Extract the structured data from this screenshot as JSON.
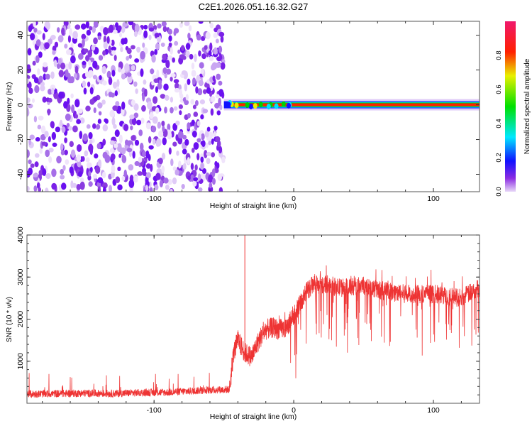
{
  "chart_data": [
    {
      "type": "heatmap",
      "title": "C2E1.2026.051.16.32.G27",
      "xlabel": "Height of straight line (km)",
      "ylabel": "Frequency (Hz)",
      "xlim": [
        -191,
        133
      ],
      "ylim": [
        -50,
        48
      ],
      "xticks": [
        -100,
        0,
        100
      ],
      "yticks": [
        -40,
        -20,
        0,
        20,
        40
      ],
      "noise_region_x": [
        -191,
        -50
      ],
      "signal_band": {
        "x_start": -50,
        "x_end": 133,
        "freq_center": 0,
        "freq_halfwidth": 2,
        "peak_amplitude": 0.95
      },
      "colorbar": {
        "label": "Normalized spectral amplitude",
        "range": [
          0,
          1
        ],
        "ticks": [
          "0.0",
          "0.2",
          "0.4",
          "0.6",
          "0.8"
        ]
      }
    },
    {
      "type": "line",
      "xlabel": "Height of straight line (km)",
      "ylabel": "SNR (10 * v/v)",
      "xlim": [
        -191,
        133
      ],
      "ylim": [
        0,
        4000
      ],
      "xticks": [
        -100,
        0,
        100
      ],
      "yticks": [
        1000,
        2000,
        3000,
        4000
      ],
      "series_color": "#ee3333",
      "series": [
        {
          "name": "SNR",
          "x": [
            -190,
            -170,
            -150,
            -130,
            -110,
            -90,
            -70,
            -55,
            -46,
            -43,
            -40,
            -35,
            -30,
            -25,
            -20,
            -15,
            -10,
            -5,
            0,
            5,
            10,
            15,
            20,
            25,
            30,
            40,
            50,
            60,
            70,
            80,
            90,
            100,
            110,
            120,
            125,
            130,
            133
          ],
          "y": [
            220,
            230,
            240,
            230,
            250,
            260,
            300,
            320,
            330,
            1200,
            1500,
            1200,
            1100,
            1500,
            1750,
            1800,
            1750,
            1800,
            2100,
            2400,
            2700,
            2850,
            2800,
            2850,
            2750,
            2750,
            2800,
            2700,
            2650,
            2600,
            2600,
            2600,
            2550,
            2500,
            2600,
            2700,
            2750
          ]
        }
      ]
    }
  ]
}
